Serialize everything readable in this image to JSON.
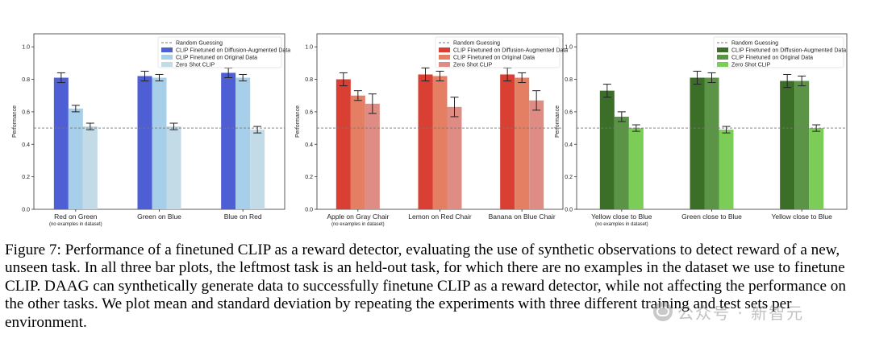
{
  "chart_data": [
    {
      "type": "bar",
      "ylabel": "Performance",
      "ylim": [
        0,
        1.08
      ],
      "yticks": [
        "0.0",
        "0.2",
        "0.4",
        "0.6",
        "0.8",
        "1.0"
      ],
      "random_guess": 0.5,
      "legend_position": "top-right",
      "legend": [
        "Random Guessing",
        "CLIP Finetuned on Diffusion-Augmented Data",
        "CLIP Finetuned on Original Data",
        "Zero Shot CLIP"
      ],
      "colors": [
        "#4e5fd6",
        "#a7cfe9",
        "#c3dbe7"
      ],
      "categories": [
        "Red on Green",
        "Green on Blue",
        "Blue on Red"
      ],
      "subnote": "(no examples in dataset)",
      "series": [
        {
          "name": "CLIP Finetuned on Diffusion-Augmented Data",
          "values": [
            0.81,
            0.82,
            0.84
          ],
          "errors": [
            0.03,
            0.03,
            0.03
          ]
        },
        {
          "name": "CLIP Finetuned on Original Data",
          "values": [
            0.62,
            0.81,
            0.81
          ],
          "errors": [
            0.02,
            0.02,
            0.02
          ]
        },
        {
          "name": "Zero Shot CLIP",
          "values": [
            0.51,
            0.51,
            0.49
          ],
          "errors": [
            0.02,
            0.02,
            0.02
          ]
        }
      ]
    },
    {
      "type": "bar",
      "ylabel": "Performance",
      "ylim": [
        0,
        1.08
      ],
      "yticks": [
        "0.0",
        "0.2",
        "0.4",
        "0.6",
        "0.8",
        "1.0"
      ],
      "random_guess": 0.5,
      "legend_position": "top-right",
      "legend": [
        "Random Guessing",
        "CLIP Finetuned on Diffusion-Augmented Data",
        "CLIP Finetuned on Original Data",
        "Zero Shot CLIP"
      ],
      "colors": [
        "#d94033",
        "#e47f64",
        "#df8c84"
      ],
      "categories": [
        "Apple on Gray Chair",
        "Lemon on Red Chair",
        "Banana on Blue Chair"
      ],
      "subnote": "(no examples in dataset)",
      "series": [
        {
          "name": "CLIP Finetuned on Diffusion-Augmented Data",
          "values": [
            0.8,
            0.83,
            0.83
          ],
          "errors": [
            0.04,
            0.04,
            0.04
          ]
        },
        {
          "name": "CLIP Finetuned on Original Data",
          "values": [
            0.7,
            0.82,
            0.81
          ],
          "errors": [
            0.03,
            0.03,
            0.03
          ]
        },
        {
          "name": "Zero Shot CLIP",
          "values": [
            0.65,
            0.63,
            0.67
          ],
          "errors": [
            0.06,
            0.06,
            0.06
          ]
        }
      ]
    },
    {
      "type": "bar",
      "ylabel": "Performance",
      "ylim": [
        0,
        1.08
      ],
      "yticks": [
        "0.0",
        "0.2",
        "0.4",
        "0.6",
        "0.8",
        "1.0"
      ],
      "random_guess": 0.5,
      "legend_position": "top-right",
      "legend": [
        "Random Guessing",
        "CLIP Finetuned on Diffusion-Augmented Data",
        "CLIP Finetuned on Original Data",
        "Zero Shot CLIP"
      ],
      "colors": [
        "#3b6e27",
        "#5b9446",
        "#7ccd58"
      ],
      "categories": [
        "Yellow close to Blue",
        "Green close to Blue",
        "Yellow close to Blue"
      ],
      "subnote": "(no examples in dataset)",
      "series": [
        {
          "name": "CLIP Finetuned on Diffusion-Augmented Data",
          "values": [
            0.73,
            0.81,
            0.79
          ],
          "errors": [
            0.04,
            0.04,
            0.04
          ]
        },
        {
          "name": "CLIP Finetuned on Original Data",
          "values": [
            0.57,
            0.81,
            0.79
          ],
          "errors": [
            0.03,
            0.03,
            0.03
          ]
        },
        {
          "name": "Zero Shot CLIP",
          "values": [
            0.5,
            0.49,
            0.5
          ],
          "errors": [
            0.02,
            0.02,
            0.02
          ]
        }
      ]
    }
  ],
  "caption": {
    "text": "Figure 7: Performance of a finetuned CLIP as a reward detector, evaluating the use of synthetic observations to detect reward of a new, unseen task. In all three bar plots, the leftmost task is an held-out task, for which there are no examples in the dataset we use to finetune CLIP. DAAG can synthetically generate data to successfully finetune CLIP as a reward detector, while not affecting the performance on the other tasks. We plot mean and standard deviation by repeating the experiments with three different training and test sets per environment."
  },
  "watermark": {
    "text": "公众号 · 新智元",
    "icon": "wechat-icon"
  }
}
